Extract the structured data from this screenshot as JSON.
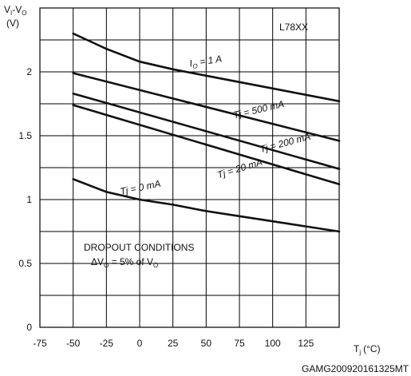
{
  "chart_data": {
    "type": "line",
    "title": "",
    "inset_label": "L78XX",
    "ylabel_main": "V",
    "ylabel_sub1": "I",
    "ylabel_mid": "-V",
    "ylabel_sub2": "O",
    "ylabel_unit": "(V)",
    "xlabel_main": "T",
    "xlabel_sub": "j",
    "xlabel_unit": "(°C)",
    "xlim": [
      -75,
      150
    ],
    "ylim": [
      0,
      2.5
    ],
    "x_ticks": [
      "-75",
      "-50",
      "-25",
      "0",
      "25",
      "50",
      "75",
      "100",
      "125"
    ],
    "x_tick_values": [
      -75,
      -50,
      -25,
      0,
      25,
      50,
      75,
      100,
      125
    ],
    "y_ticks": [
      "0",
      "0.5",
      "1",
      "1.5",
      "2"
    ],
    "y_tick_values": [
      0,
      0.5,
      1,
      1.5,
      2
    ],
    "grid_x": [
      -75,
      -50,
      -25,
      0,
      25,
      50,
      75,
      100,
      125,
      150
    ],
    "grid_y": [
      0,
      0.25,
      0.5,
      0.75,
      1,
      1.25,
      1.5,
      1.75,
      2,
      2.25,
      2.5
    ],
    "series": [
      {
        "label_main": "I",
        "label_sub": "O",
        "label_rest": " = 1 A",
        "label_at": [
          50,
          2.06
        ],
        "label_angle": -9,
        "x": [
          -50,
          -25,
          0,
          25,
          50,
          75,
          100,
          125,
          150
        ],
        "y": [
          2.3,
          2.18,
          2.08,
          2.02,
          1.97,
          1.92,
          1.87,
          1.82,
          1.77
        ]
      },
      {
        "label_main": "Tj = 500 mA",
        "label_sub": "",
        "label_rest": "",
        "label_at": [
          90,
          1.68
        ],
        "label_angle": -13,
        "x": [
          -50,
          150
        ],
        "y": [
          1.99,
          1.46
        ]
      },
      {
        "label_main": "Tj = 200 mA",
        "label_sub": "",
        "label_rest": "",
        "label_at": [
          110,
          1.42
        ],
        "label_angle": -15,
        "x": [
          -50,
          150
        ],
        "y": [
          1.83,
          1.24
        ]
      },
      {
        "label_main": "Tj = 20 mA",
        "label_sub": "",
        "label_rest": "",
        "label_at": [
          76,
          1.22
        ],
        "label_angle": -17,
        "x": [
          -50,
          150
        ],
        "y": [
          1.74,
          1.12
        ]
      },
      {
        "label_main": "Tj = 0 mA",
        "label_sub": "",
        "label_rest": "",
        "label_at": [
          1,
          1.07
        ],
        "label_angle": -12,
        "x": [
          -50,
          -25,
          0,
          25,
          50,
          75,
          100,
          125,
          150
        ],
        "y": [
          1.16,
          1.06,
          1.0,
          0.96,
          0.91,
          0.87,
          0.83,
          0.79,
          0.75
        ]
      }
    ],
    "annotation": {
      "line1": "DROPOUT CONDITIONS",
      "line2_pre": "ΔV",
      "line2_sub1": "O",
      "line2_mid": " = 5% of V",
      "line2_sub2": "O"
    },
    "footer_code": "GAMG200920161325MT",
    "grid": true,
    "legend": "none"
  }
}
